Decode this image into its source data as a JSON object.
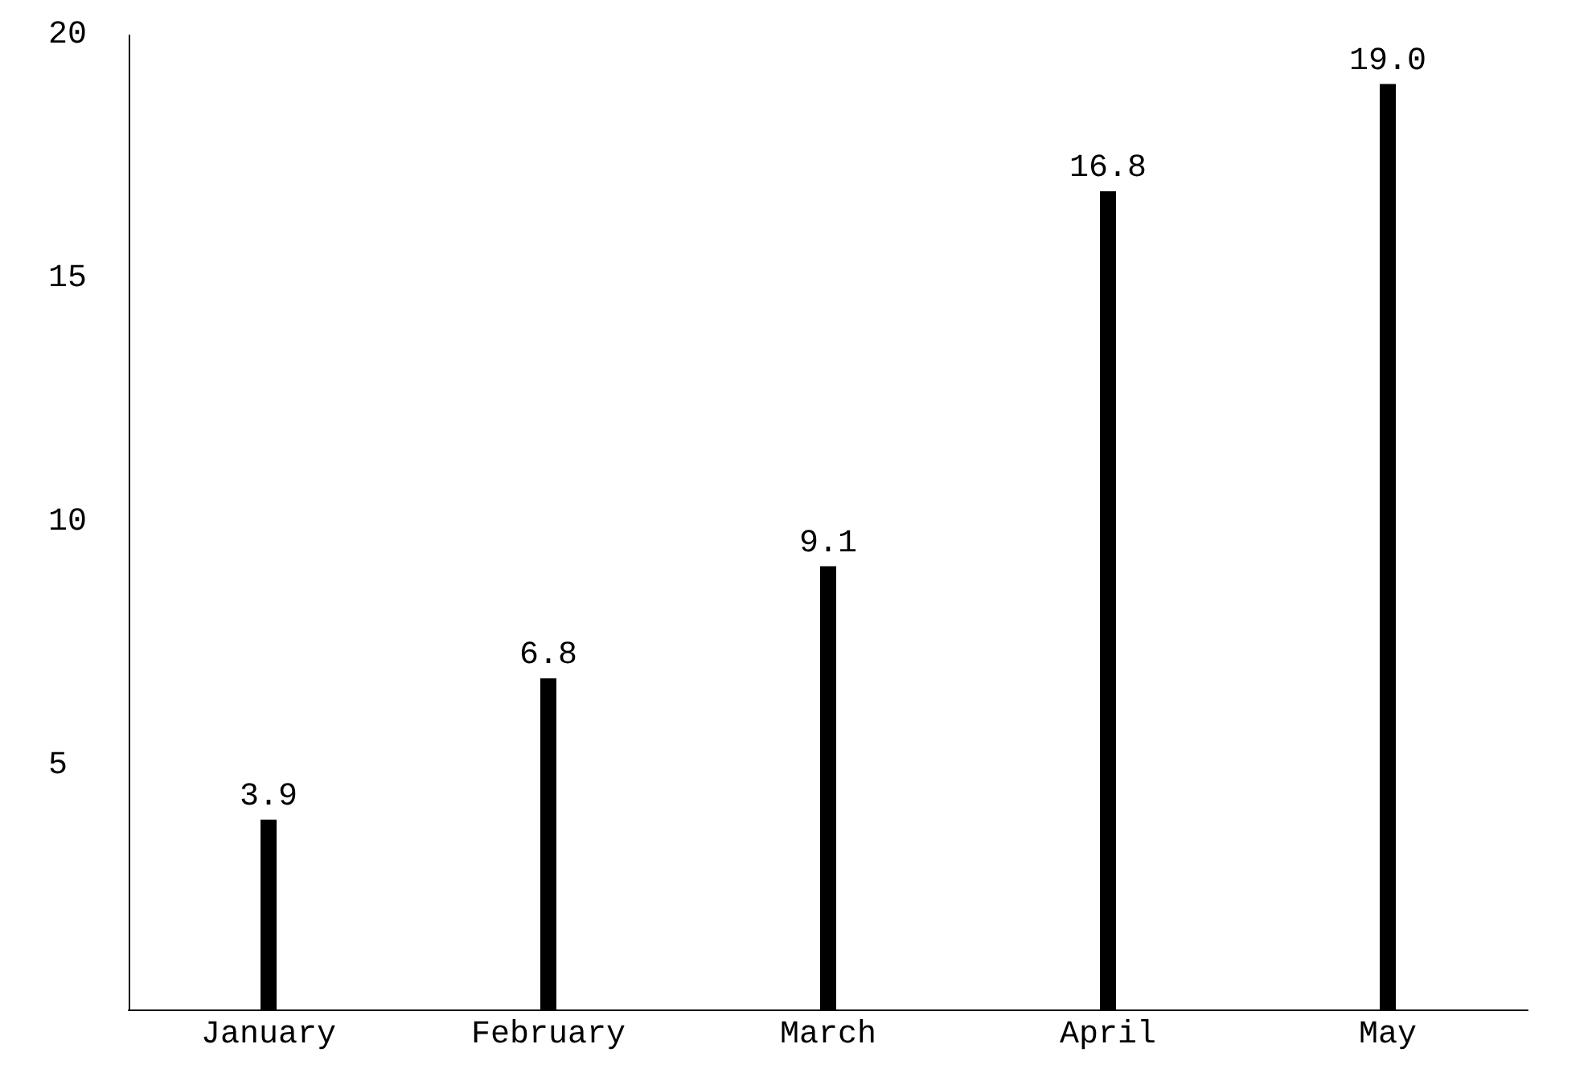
{
  "chart_data": {
    "type": "bar",
    "categories": [
      "January",
      "February",
      "March",
      "April",
      "May"
    ],
    "values": [
      3.9,
      6.8,
      9.1,
      16.8,
      19.0
    ],
    "value_labels": [
      "3.9",
      "6.8",
      "9.1",
      "16.8",
      "19.0"
    ],
    "color": "#000000",
    "ylim": [
      0,
      20
    ],
    "yticks": [
      5,
      10,
      15,
      20
    ],
    "grid": false
  }
}
